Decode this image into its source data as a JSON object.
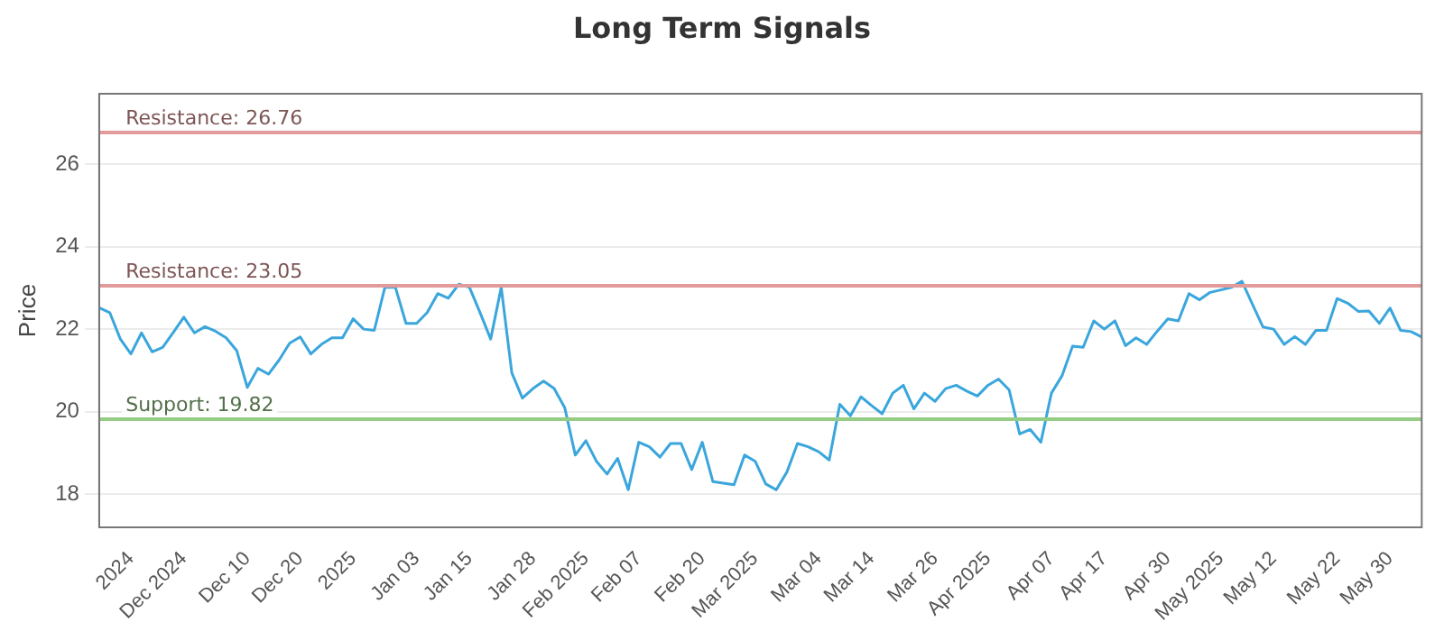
{
  "chart_data": {
    "type": "line",
    "title": "Long Term Signals",
    "ylabel": "Price",
    "categories": [
      null,
      null,
      null,
      "2024",
      null,
      null,
      null,
      null,
      "Dec 2024",
      null,
      null,
      null,
      null,
      null,
      "Dec 10",
      null,
      null,
      null,
      null,
      "Dec 20",
      null,
      null,
      null,
      null,
      "2025",
      null,
      null,
      null,
      null,
      null,
      "Jan 03",
      null,
      null,
      null,
      null,
      "Jan 15",
      null,
      null,
      null,
      null,
      null,
      "Jan 28",
      null,
      null,
      null,
      null,
      "Feb 2025",
      null,
      null,
      null,
      null,
      "Feb 07",
      null,
      null,
      null,
      null,
      null,
      "Feb 20",
      null,
      null,
      null,
      null,
      "Mar 2025",
      null,
      null,
      null,
      null,
      null,
      "Mar 04",
      null,
      null,
      null,
      null,
      "Mar 14",
      null,
      null,
      null,
      null,
      null,
      "Mar 26",
      null,
      null,
      null,
      null,
      "Apr 2025",
      null,
      null,
      null,
      null,
      null,
      "Apr 07",
      null,
      null,
      null,
      null,
      "Apr 17",
      null,
      null,
      null,
      null,
      null,
      "Apr 30",
      null,
      null,
      null,
      null,
      "May 2025",
      null,
      null,
      null,
      null,
      "May 12",
      null,
      null,
      null,
      null,
      null,
      "May 22",
      null,
      null,
      null,
      null,
      "May 30",
      null,
      null,
      null
    ],
    "series": [
      {
        "color": "#3aa6dc",
        "values": [
          22.52,
          22.4,
          21.76,
          21.4,
          21.91,
          21.45,
          21.56,
          21.92,
          22.29,
          21.91,
          22.06,
          21.95,
          21.79,
          21.48,
          20.59,
          21.05,
          20.91,
          21.25,
          21.66,
          21.81,
          21.4,
          21.63,
          21.79,
          21.79,
          22.25,
          22.0,
          21.97,
          23.01,
          23.01,
          22.14,
          22.14,
          22.4,
          22.86,
          22.75,
          23.09,
          23.01,
          22.4,
          21.76,
          23.01,
          20.94,
          20.33,
          20.56,
          20.74,
          20.56,
          20.1,
          18.95,
          19.3,
          18.8,
          18.49,
          18.87,
          18.11,
          19.26,
          19.15,
          18.9,
          19.23,
          19.23,
          18.6,
          19.26,
          18.31,
          18.27,
          18.23,
          18.95,
          18.8,
          18.25,
          18.11,
          18.54,
          19.23,
          19.15,
          19.03,
          18.83,
          20.18,
          19.9,
          20.36,
          20.15,
          19.95,
          20.45,
          20.64,
          20.07,
          20.45,
          20.25,
          20.56,
          20.64,
          20.5,
          20.38,
          20.64,
          20.79,
          20.53,
          19.46,
          19.57,
          19.26,
          20.45,
          20.87,
          21.59,
          21.56,
          22.2,
          22.0,
          22.2,
          21.6,
          21.79,
          21.63,
          21.95,
          22.25,
          22.2,
          22.86,
          22.71,
          22.89,
          22.95,
          23.01,
          23.16,
          22.6,
          22.05,
          22.0,
          21.63,
          21.82,
          21.63,
          21.97,
          21.97,
          22.74,
          22.63,
          22.43,
          22.44,
          22.14,
          22.51,
          21.97,
          21.94,
          21.81
        ]
      }
    ],
    "ylim": [
      17.2,
      27.7
    ],
    "yticks": [
      18,
      20,
      22,
      24,
      26
    ],
    "grid": "y",
    "legend": false,
    "marker": "none",
    "line_style": "solid",
    "ref_lines": [
      {
        "axis": "y",
        "value": 26.76,
        "label": "Resistance: 26.76",
        "color": "#e39a9a"
      },
      {
        "axis": "y",
        "value": 23.05,
        "label": "Resistance: 23.05",
        "color": "#e39a9a"
      },
      {
        "axis": "y",
        "value": 19.82,
        "label": "Support: 19.82",
        "color": "#95cc86"
      }
    ]
  }
}
